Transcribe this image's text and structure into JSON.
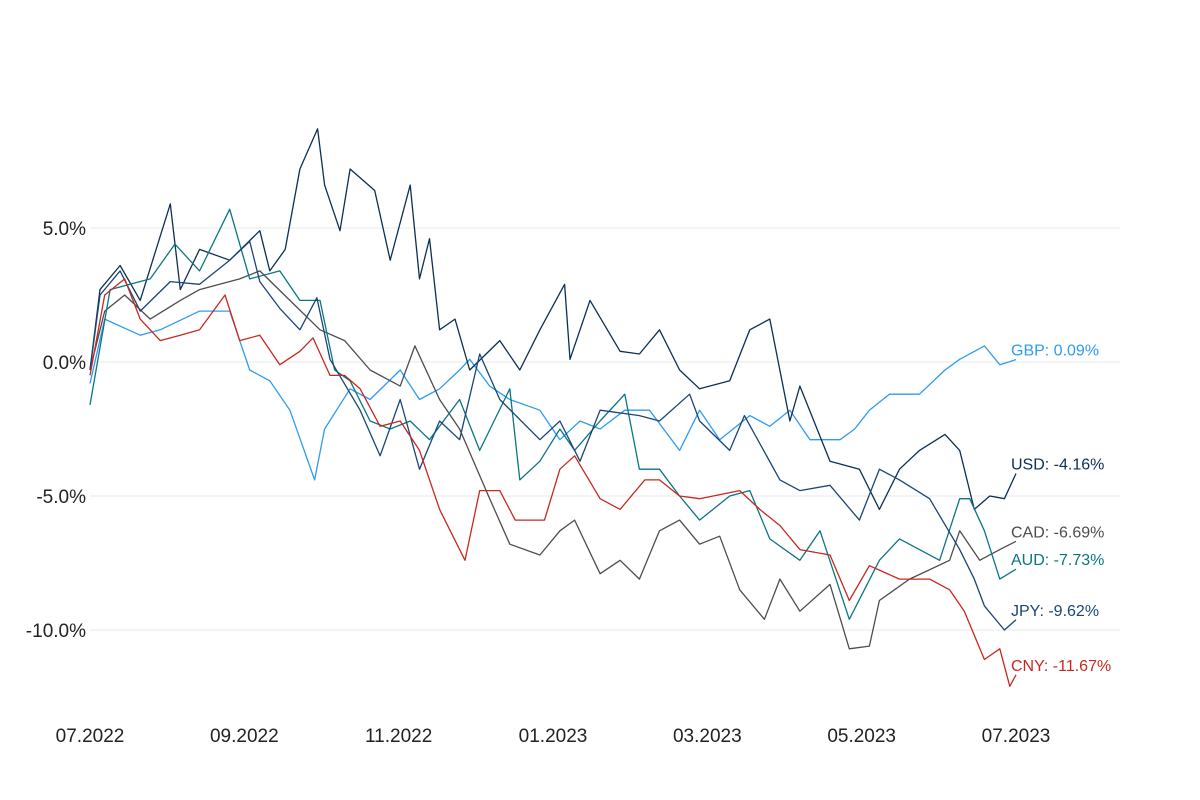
{
  "chart_data": {
    "type": "line",
    "title": "",
    "xlabel": "",
    "ylabel": "",
    "x_unit": "months since 07.2022",
    "xlim": [
      0,
      12
    ],
    "ylim": [
      -13,
      10
    ],
    "grid": true,
    "legend": "inline end labels (right)",
    "x_ticks": [
      {
        "t": 0,
        "label": "07.2022"
      },
      {
        "t": 2,
        "label": "09.2022"
      },
      {
        "t": 4,
        "label": "11.2022"
      },
      {
        "t": 6,
        "label": "01.2023"
      },
      {
        "t": 8,
        "label": "03.2023"
      },
      {
        "t": 10,
        "label": "05.2023"
      },
      {
        "t": 12,
        "label": "07.2023"
      }
    ],
    "y_ticks": [
      {
        "v": 5,
        "label": "5.0%"
      },
      {
        "v": 0,
        "label": "0.0%"
      },
      {
        "v": -5,
        "label": "-5.0%"
      },
      {
        "v": -10,
        "label": "-10.0%"
      }
    ],
    "series": [
      {
        "name": "GBP",
        "end_label": "GBP: 0.09%",
        "color": "#2e9cf0",
        "points": [
          [
            0,
            -0.8
          ],
          [
            0.19,
            1.6
          ],
          [
            0.65,
            1.0
          ],
          [
            0.91,
            1.2
          ],
          [
            1.42,
            1.9
          ],
          [
            1.81,
            1.9
          ],
          [
            2.07,
            -0.3
          ],
          [
            2.33,
            -0.7
          ],
          [
            2.59,
            -1.8
          ],
          [
            2.91,
            -4.4
          ],
          [
            3.04,
            -2.5
          ],
          [
            3.37,
            -1.0
          ],
          [
            3.63,
            -1.4
          ],
          [
            4.02,
            -0.3
          ],
          [
            4.27,
            -1.4
          ],
          [
            4.53,
            -1.0
          ],
          [
            4.79,
            -0.3
          ],
          [
            4.92,
            0.1
          ],
          [
            5.18,
            -0.9
          ],
          [
            5.44,
            -1.4
          ],
          [
            5.83,
            -1.8
          ],
          [
            6.09,
            -2.9
          ],
          [
            6.35,
            -2.2
          ],
          [
            6.61,
            -2.5
          ],
          [
            6.93,
            -1.8
          ],
          [
            7.25,
            -1.8
          ],
          [
            7.64,
            -3.3
          ],
          [
            7.9,
            -1.8
          ],
          [
            8.16,
            -2.9
          ],
          [
            8.55,
            -2.0
          ],
          [
            8.81,
            -2.4
          ],
          [
            9.07,
            -1.8
          ],
          [
            9.33,
            -2.9
          ],
          [
            9.72,
            -2.9
          ],
          [
            9.91,
            -2.5
          ],
          [
            10.1,
            -1.8
          ],
          [
            10.36,
            -1.2
          ],
          [
            10.75,
            -1.2
          ],
          [
            11.08,
            -0.3
          ],
          [
            11.27,
            0.1
          ],
          [
            11.59,
            0.6
          ],
          [
            11.79,
            -0.1
          ],
          [
            12,
            0.09
          ]
        ]
      },
      {
        "name": "USD",
        "end_label": "USD: -4.16%",
        "color": "#0b2f55",
        "points": [
          [
            0,
            -0.3
          ],
          [
            0.13,
            2.7
          ],
          [
            0.39,
            3.6
          ],
          [
            0.65,
            2.3
          ],
          [
            1.04,
            5.9
          ],
          [
            1.17,
            2.7
          ],
          [
            1.42,
            4.2
          ],
          [
            1.81,
            3.8
          ],
          [
            2.2,
            4.9
          ],
          [
            2.33,
            3.4
          ],
          [
            2.53,
            4.2
          ],
          [
            2.72,
            7.2
          ],
          [
            2.95,
            8.7
          ],
          [
            3.04,
            6.6
          ],
          [
            3.24,
            4.9
          ],
          [
            3.37,
            7.2
          ],
          [
            3.69,
            6.4
          ],
          [
            3.89,
            3.8
          ],
          [
            4.15,
            6.6
          ],
          [
            4.27,
            3.1
          ],
          [
            4.4,
            4.6
          ],
          [
            4.53,
            1.2
          ],
          [
            4.73,
            1.6
          ],
          [
            4.92,
            -0.3
          ],
          [
            5.31,
            0.8
          ],
          [
            5.57,
            -0.3
          ],
          [
            5.83,
            1.2
          ],
          [
            6.15,
            2.9
          ],
          [
            6.22,
            0.1
          ],
          [
            6.48,
            2.3
          ],
          [
            6.87,
            0.4
          ],
          [
            7.12,
            0.3
          ],
          [
            7.38,
            1.2
          ],
          [
            7.64,
            -0.3
          ],
          [
            7.9,
            -1.0
          ],
          [
            8.29,
            -0.7
          ],
          [
            8.55,
            1.2
          ],
          [
            8.81,
            1.6
          ],
          [
            9.07,
            -2.2
          ],
          [
            9.2,
            -0.9
          ],
          [
            9.59,
            -3.7
          ],
          [
            9.97,
            -4.0
          ],
          [
            10.23,
            -5.5
          ],
          [
            10.49,
            -4.0
          ],
          [
            10.75,
            -3.3
          ],
          [
            11.08,
            -2.7
          ],
          [
            11.27,
            -3.3
          ],
          [
            11.46,
            -5.5
          ],
          [
            11.66,
            -5.0
          ],
          [
            11.85,
            -5.1
          ],
          [
            12,
            -4.16
          ]
        ]
      },
      {
        "name": "CAD",
        "end_label": "CAD: -6.69%",
        "color": "#4d4d4d",
        "points": [
          [
            0,
            -0.3
          ],
          [
            0.19,
            1.9
          ],
          [
            0.45,
            2.5
          ],
          [
            0.78,
            1.6
          ],
          [
            1.17,
            2.3
          ],
          [
            1.42,
            2.7
          ],
          [
            1.94,
            3.1
          ],
          [
            2.2,
            3.4
          ],
          [
            2.59,
            2.3
          ],
          [
            2.98,
            1.2
          ],
          [
            3.3,
            0.8
          ],
          [
            3.63,
            -0.3
          ],
          [
            4.02,
            -0.9
          ],
          [
            4.21,
            0.6
          ],
          [
            4.53,
            -1.4
          ],
          [
            4.79,
            -2.5
          ],
          [
            5.18,
            -5.1
          ],
          [
            5.44,
            -6.8
          ],
          [
            5.83,
            -7.2
          ],
          [
            6.09,
            -6.3
          ],
          [
            6.28,
            -5.9
          ],
          [
            6.61,
            -7.9
          ],
          [
            6.87,
            -7.4
          ],
          [
            7.12,
            -8.1
          ],
          [
            7.38,
            -6.3
          ],
          [
            7.64,
            -5.9
          ],
          [
            7.9,
            -6.8
          ],
          [
            8.16,
            -6.5
          ],
          [
            8.42,
            -8.5
          ],
          [
            8.74,
            -9.6
          ],
          [
            8.94,
            -8.1
          ],
          [
            9.2,
            -9.3
          ],
          [
            9.59,
            -8.3
          ],
          [
            9.84,
            -10.7
          ],
          [
            10.1,
            -10.6
          ],
          [
            10.23,
            -8.9
          ],
          [
            10.62,
            -8.1
          ],
          [
            11.14,
            -7.4
          ],
          [
            11.27,
            -6.3
          ],
          [
            11.53,
            -7.4
          ],
          [
            11.79,
            -7.0
          ],
          [
            12,
            -6.69
          ]
        ]
      },
      {
        "name": "AUD",
        "end_label": "AUD: -7.73%",
        "color": "#0a7680",
        "points": [
          [
            0,
            -1.6
          ],
          [
            0.26,
            2.7
          ],
          [
            0.78,
            3.1
          ],
          [
            1.1,
            4.4
          ],
          [
            1.42,
            3.4
          ],
          [
            1.81,
            5.7
          ],
          [
            2.07,
            3.1
          ],
          [
            2.46,
            3.4
          ],
          [
            2.72,
            2.3
          ],
          [
            2.98,
            2.3
          ],
          [
            3.17,
            -0.3
          ],
          [
            3.37,
            -0.7
          ],
          [
            3.63,
            -2.2
          ],
          [
            3.89,
            -2.5
          ],
          [
            4.15,
            -2.2
          ],
          [
            4.4,
            -2.9
          ],
          [
            4.79,
            -1.4
          ],
          [
            5.05,
            -3.3
          ],
          [
            5.44,
            -1.0
          ],
          [
            5.57,
            -4.4
          ],
          [
            5.83,
            -3.7
          ],
          [
            6.09,
            -2.5
          ],
          [
            6.28,
            -3.3
          ],
          [
            6.61,
            -2.2
          ],
          [
            6.93,
            -1.2
          ],
          [
            7.12,
            -4.0
          ],
          [
            7.38,
            -4.0
          ],
          [
            7.64,
            -5.0
          ],
          [
            7.9,
            -5.9
          ],
          [
            8.29,
            -5.0
          ],
          [
            8.55,
            -4.8
          ],
          [
            8.81,
            -6.6
          ],
          [
            9.2,
            -7.4
          ],
          [
            9.46,
            -6.3
          ],
          [
            9.84,
            -9.6
          ],
          [
            10.23,
            -7.4
          ],
          [
            10.49,
            -6.6
          ],
          [
            11.01,
            -7.4
          ],
          [
            11.27,
            -5.1
          ],
          [
            11.4,
            -5.1
          ],
          [
            11.59,
            -6.3
          ],
          [
            11.79,
            -8.1
          ],
          [
            12,
            -7.73
          ]
        ]
      },
      {
        "name": "JPY",
        "end_label": "JPY: -9.62%",
        "color": "#1a4577",
        "points": [
          [
            0,
            -0.3
          ],
          [
            0.13,
            2.5
          ],
          [
            0.39,
            3.4
          ],
          [
            0.65,
            1.9
          ],
          [
            1.04,
            3.0
          ],
          [
            1.42,
            2.9
          ],
          [
            1.81,
            3.8
          ],
          [
            2.07,
            4.5
          ],
          [
            2.2,
            3.0
          ],
          [
            2.46,
            2.0
          ],
          [
            2.72,
            1.2
          ],
          [
            2.94,
            2.4
          ],
          [
            3.11,
            0.1
          ],
          [
            3.5,
            -1.8
          ],
          [
            3.76,
            -3.5
          ],
          [
            4.02,
            -1.4
          ],
          [
            4.27,
            -4.0
          ],
          [
            4.53,
            -2.2
          ],
          [
            4.79,
            -2.9
          ],
          [
            5.05,
            0.3
          ],
          [
            5.31,
            -1.4
          ],
          [
            5.83,
            -2.9
          ],
          [
            6.09,
            -2.2
          ],
          [
            6.35,
            -3.7
          ],
          [
            6.61,
            -1.8
          ],
          [
            7.12,
            -2.0
          ],
          [
            7.38,
            -2.2
          ],
          [
            7.77,
            -1.2
          ],
          [
            7.9,
            -2.2
          ],
          [
            8.29,
            -3.3
          ],
          [
            8.48,
            -2.0
          ],
          [
            8.94,
            -4.4
          ],
          [
            9.2,
            -4.8
          ],
          [
            9.59,
            -4.6
          ],
          [
            9.97,
            -5.9
          ],
          [
            10.23,
            -4.0
          ],
          [
            10.49,
            -4.4
          ],
          [
            10.88,
            -5.1
          ],
          [
            11.27,
            -7.0
          ],
          [
            11.46,
            -8.1
          ],
          [
            11.59,
            -9.1
          ],
          [
            11.85,
            -10.0
          ],
          [
            12,
            -9.62
          ]
        ]
      },
      {
        "name": "CNY",
        "end_label": "CNY: -11.67%",
        "color": "#c8281e",
        "points": [
          [
            0,
            -0.5
          ],
          [
            0.19,
            2.5
          ],
          [
            0.45,
            3.1
          ],
          [
            0.65,
            1.6
          ],
          [
            0.91,
            0.8
          ],
          [
            1.17,
            1.0
          ],
          [
            1.42,
            1.2
          ],
          [
            1.75,
            2.5
          ],
          [
            1.94,
            0.8
          ],
          [
            2.2,
            1.0
          ],
          [
            2.46,
            -0.1
          ],
          [
            2.72,
            0.4
          ],
          [
            2.89,
            0.9
          ],
          [
            3.11,
            -0.5
          ],
          [
            3.3,
            -0.5
          ],
          [
            3.5,
            -1.0
          ],
          [
            3.76,
            -2.4
          ],
          [
            4.02,
            -2.2
          ],
          [
            4.27,
            -3.3
          ],
          [
            4.53,
            -5.5
          ],
          [
            4.86,
            -7.4
          ],
          [
            5.05,
            -4.8
          ],
          [
            5.31,
            -4.8
          ],
          [
            5.51,
            -5.9
          ],
          [
            5.89,
            -5.9
          ],
          [
            6.09,
            -4.0
          ],
          [
            6.28,
            -3.5
          ],
          [
            6.61,
            -5.1
          ],
          [
            6.87,
            -5.5
          ],
          [
            7.19,
            -4.4
          ],
          [
            7.38,
            -4.4
          ],
          [
            7.64,
            -5.0
          ],
          [
            7.9,
            -5.1
          ],
          [
            8.42,
            -4.8
          ],
          [
            8.68,
            -5.5
          ],
          [
            8.94,
            -6.1
          ],
          [
            9.2,
            -7.0
          ],
          [
            9.59,
            -7.2
          ],
          [
            9.84,
            -8.9
          ],
          [
            10.1,
            -7.6
          ],
          [
            10.49,
            -8.1
          ],
          [
            10.88,
            -8.1
          ],
          [
            11.14,
            -8.5
          ],
          [
            11.33,
            -9.3
          ],
          [
            11.59,
            -11.1
          ],
          [
            11.79,
            -10.7
          ],
          [
            11.92,
            -12.1
          ],
          [
            12,
            -11.67
          ]
        ]
      }
    ]
  }
}
